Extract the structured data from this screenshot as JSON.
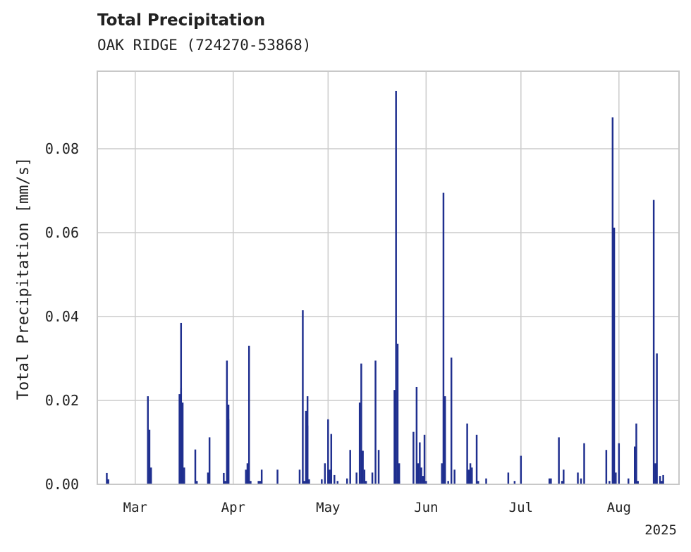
{
  "header": {
    "title": "Total Precipitation",
    "subtitle": "OAK RIDGE (724270-53868)"
  },
  "chart_data": {
    "type": "bar",
    "title": "Total Precipitation",
    "subtitle": "OAK RIDGE (724270-53868)",
    "ylabel": "Total Precipitation [mm/s]",
    "xlabel": "",
    "year_label": "2025",
    "x_ticks": [
      {
        "date": "2025-03-01",
        "label": "Mar"
      },
      {
        "date": "2025-04-01",
        "label": "Apr"
      },
      {
        "date": "2025-05-01",
        "label": "May"
      },
      {
        "date": "2025-06-01",
        "label": "Jun"
      },
      {
        "date": "2025-07-01",
        "label": "Jul"
      },
      {
        "date": "2025-08-01",
        "label": "Aug"
      }
    ],
    "y_ticks": [
      0,
      0.02,
      0.04,
      0.06,
      0.08
    ],
    "y_tick_labels": [
      "0.00",
      "0.02",
      "0.04",
      "0.06",
      "0.08"
    ],
    "xlim": [
      "2025-02-17",
      "2025-08-20"
    ],
    "ylim": [
      0,
      0.0985
    ],
    "grid": true,
    "bar_color": "#1f2f8f",
    "grid_color": "#cccccc",
    "x": [
      "2025-02-20",
      "2025-02-20",
      "2025-03-05",
      "2025-03-05",
      "2025-03-06",
      "2025-03-15",
      "2025-03-15",
      "2025-03-15",
      "2025-03-16",
      "2025-03-16",
      "2025-03-16",
      "2025-03-20",
      "2025-03-20",
      "2025-03-24",
      "2025-03-24",
      "2025-03-29",
      "2025-03-29",
      "2025-03-30",
      "2025-03-30",
      "2025-03-30",
      "2025-04-05",
      "2025-04-05",
      "2025-04-06",
      "2025-04-06",
      "2025-04-09",
      "2025-04-09",
      "2025-04-10",
      "2025-04-15",
      "2025-04-22",
      "2025-04-23",
      "2025-04-23",
      "2025-04-24",
      "2025-04-24",
      "2025-04-24",
      "2025-04-25",
      "2025-04-29",
      "2025-04-30",
      "2025-05-01",
      "2025-05-01",
      "2025-05-02",
      "2025-05-03",
      "2025-05-04",
      "2025-05-07",
      "2025-05-08",
      "2025-05-10",
      "2025-05-11",
      "2025-05-11",
      "2025-05-12",
      "2025-05-12",
      "2025-05-13",
      "2025-05-15",
      "2025-05-16",
      "2025-05-17",
      "2025-05-22",
      "2025-05-22",
      "2025-05-23",
      "2025-05-23",
      "2025-05-23",
      "2025-05-28",
      "2025-05-29",
      "2025-05-29",
      "2025-05-30",
      "2025-05-30",
      "2025-05-31",
      "2025-05-31",
      "2025-06-01",
      "2025-06-06",
      "2025-06-06",
      "2025-06-07",
      "2025-06-08",
      "2025-06-09",
      "2025-06-10",
      "2025-06-14",
      "2025-06-14",
      "2025-06-15",
      "2025-06-15",
      "2025-06-17",
      "2025-06-17",
      "2025-06-20",
      "2025-06-27",
      "2025-06-29",
      "2025-07-01",
      "2025-07-10",
      "2025-07-10",
      "2025-07-13",
      "2025-07-14",
      "2025-07-14",
      "2025-07-19",
      "2025-07-20",
      "2025-07-21",
      "2025-07-28",
      "2025-07-29",
      "2025-07-30",
      "2025-07-30",
      "2025-07-31",
      "2025-08-01",
      "2025-08-04",
      "2025-08-06",
      "2025-08-06",
      "2025-08-07",
      "2025-08-12",
      "2025-08-12",
      "2025-08-13",
      "2025-08-14",
      "2025-08-14",
      "2025-08-15"
    ],
    "values": [
      0.0027,
      0.0012,
      0.021,
      0.013,
      0.004,
      0.0215,
      0.023,
      0.0385,
      0.0195,
      0.004,
      0.0008,
      0.0083,
      0.0008,
      0.0028,
      0.0112,
      0.0027,
      0.0008,
      0.0295,
      0.0155,
      0.019,
      0.0035,
      0.005,
      0.033,
      0.0008,
      0.0008,
      0.0008,
      0.0035,
      0.0035,
      0.0035,
      0.0415,
      0.0008,
      0.0175,
      0.021,
      0.014,
      0.0012,
      0.0012,
      0.005,
      0.0155,
      0.0035,
      0.012,
      0.0022,
      0.0008,
      0.0014,
      0.0082,
      0.0028,
      0.0195,
      0.0288,
      0.008,
      0.0035,
      0.0008,
      0.0028,
      0.0295,
      0.0082,
      0.0225,
      0.0938,
      0.0335,
      0.005,
      0.0008,
      0.0125,
      0.0232,
      0.005,
      0.01,
      0.004,
      0.002,
      0.0118,
      0.0008,
      0.005,
      0.0695,
      0.021,
      0.0008,
      0.0302,
      0.0035,
      0.0145,
      0.0035,
      0.005,
      0.004,
      0.0118,
      0.0008,
      0.0014,
      0.0028,
      0.0008,
      0.0068,
      0.0014,
      0.0014,
      0.0112,
      0.0008,
      0.0035,
      0.0028,
      0.0014,
      0.0098,
      0.0082,
      0.0008,
      0.0875,
      0.0612,
      0.0028,
      0.0098,
      0.0014,
      0.009,
      0.0145,
      0.0008,
      0.0678,
      0.005,
      0.0312,
      0.002,
      0.0008,
      0.0022
    ]
  }
}
